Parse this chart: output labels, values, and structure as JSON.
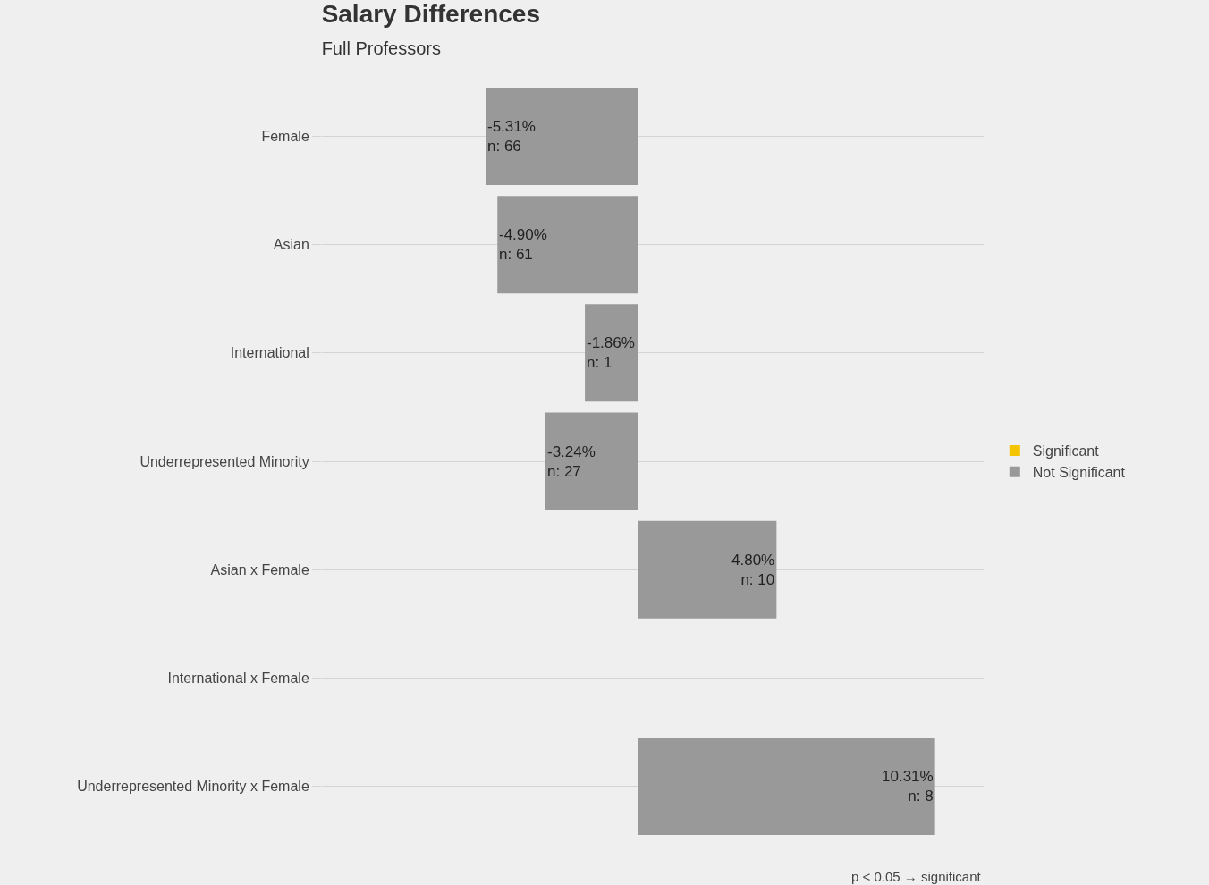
{
  "chart_data": {
    "type": "bar",
    "orientation": "horizontal",
    "title": "Salary Differences",
    "subtitle": "Full Professors",
    "categories": [
      "Female",
      "Asian",
      "International",
      "Underrepresented Minority",
      "Asian x Female",
      "International x Female",
      "Underrepresented Minority x Female"
    ],
    "series": [
      {
        "name": "Significant",
        "color": "#f5c400",
        "values": [
          null,
          null,
          null,
          null,
          null,
          null,
          null
        ]
      },
      {
        "name": "Not Significant",
        "color": "#999999",
        "values": [
          -5.31,
          -4.9,
          -1.86,
          -3.24,
          4.8,
          null,
          10.31
        ],
        "value_labels": [
          "-5.31%\nn: 66",
          "-4.90%\nn: 61",
          "-1.86%\nn: 1",
          "-3.24%\nn: 27",
          "4.80%\nn: 10",
          null,
          "10.31%\nn: 8"
        ]
      }
    ],
    "xlim": [
      -11,
      12
    ],
    "xticks": [
      {
        "value": -10,
        "label": null
      },
      {
        "value": -5,
        "label": null
      },
      {
        "value": 0,
        "label": null
      },
      {
        "value": 5,
        "label": null
      },
      {
        "value": 10,
        "label": null
      }
    ],
    "tick_labels": "y",
    "grid": true,
    "legend": "right",
    "annotations": [
      "p < 0.05 → significant"
    ]
  }
}
